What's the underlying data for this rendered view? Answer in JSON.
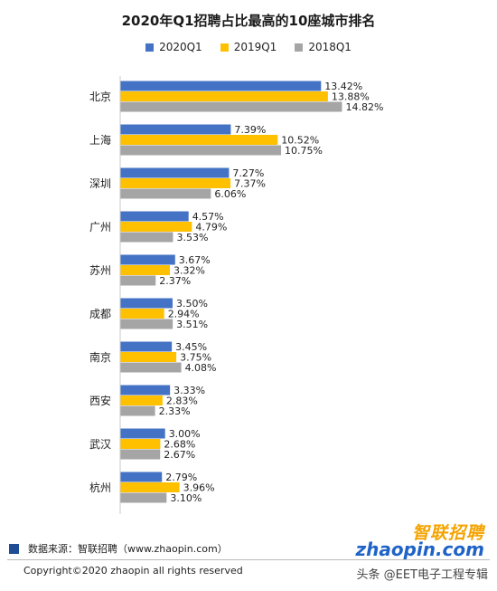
{
  "chart_data": {
    "type": "bar",
    "orientation": "horizontal",
    "title": "2020年Q1招聘占比最高的10座城市排名",
    "categories": [
      "北京",
      "上海",
      "深圳",
      "广州",
      "苏州",
      "成都",
      "南京",
      "西安",
      "武汉",
      "杭州"
    ],
    "series": [
      {
        "name": "2020Q1",
        "color": "#4472c4",
        "values": [
          13.42,
          7.39,
          7.27,
          4.57,
          3.67,
          3.5,
          3.45,
          3.33,
          3.0,
          2.79
        ]
      },
      {
        "name": "2019Q1",
        "color": "#ffc000",
        "values": [
          13.88,
          10.52,
          7.37,
          4.79,
          3.32,
          2.94,
          3.75,
          2.83,
          2.68,
          3.96
        ]
      },
      {
        "name": "2018Q1",
        "color": "#a5a5a5",
        "values": [
          14.82,
          10.75,
          6.06,
          3.53,
          2.37,
          3.51,
          4.08,
          2.33,
          2.67,
          3.1
        ]
      }
    ],
    "value_labels": [
      [
        "13.42%",
        "7.39%",
        "7.27%",
        "4.57%",
        "3.67%",
        "3.50%",
        "3.45%",
        "3.33%",
        "3.00%",
        "2.79%"
      ],
      [
        "13.88%",
        "10.52%",
        "7.37%",
        "4.79%",
        "3.32%",
        "2.94%",
        "3.75%",
        "2.83%",
        "2.68%",
        "3.96%"
      ],
      [
        "14.82%",
        "10.75%",
        "6.06%",
        "3.53%",
        "2.37%",
        "3.51%",
        "4.08%",
        "2.33%",
        "2.67%",
        "3.10%"
      ]
    ],
    "xlim": [
      0,
      16
    ],
    "grid": false,
    "legend_position": "top"
  },
  "footer": {
    "source": "数据来源：智联招聘（www.zhaopin.com）",
    "copyright": "Copyright©2020 zhaopin all rights reserved",
    "logo_cn": "智联招聘",
    "logo_en": "zhaopin.com",
    "watermark": "头条 @EET电子工程专辑"
  }
}
